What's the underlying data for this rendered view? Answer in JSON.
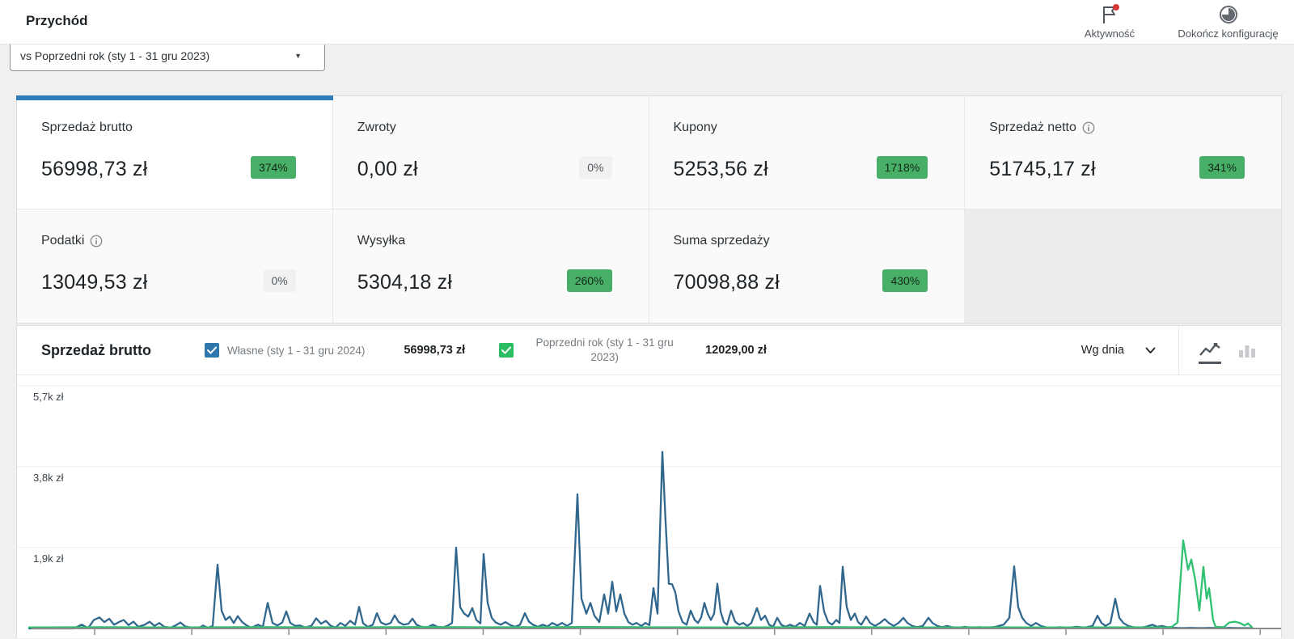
{
  "topbar": {
    "title": "Przychód",
    "items": [
      {
        "label": "Aktywność",
        "icon": "flag-icon",
        "has_notification_dot": true
      },
      {
        "label": "Dokończ konfigurację",
        "icon": "progress-pie-icon"
      }
    ]
  },
  "period_selector": {
    "value": "vs Poprzedni rok (sty 1 - 31 gru 2023)",
    "caret": "▼"
  },
  "stats": {
    "cards": [
      {
        "label": "Sprzedaż brutto",
        "value": "56998,73 zł",
        "badge": "374%",
        "badge_type": "positive",
        "selected": true,
        "has_info_icon": false
      },
      {
        "label": "Zwroty",
        "value": "0,00 zł",
        "badge": "0%",
        "badge_type": "neutral",
        "selected": false,
        "has_info_icon": false
      },
      {
        "label": "Kupony",
        "value": "5253,56 zł",
        "badge": "1718%",
        "badge_type": "positive",
        "selected": false,
        "has_info_icon": false
      },
      {
        "label": "Sprzedaż netto",
        "value": "51745,17 zł",
        "badge": "341%",
        "badge_type": "positive",
        "selected": false,
        "has_info_icon": true
      },
      {
        "label": "Podatki",
        "value": "13049,53 zł",
        "badge": "0%",
        "badge_type": "neutral",
        "selected": false,
        "has_info_icon": true
      },
      {
        "label": "Wysyłka",
        "value": "5304,18 zł",
        "badge": "260%",
        "badge_type": "positive",
        "selected": false,
        "has_info_icon": false
      },
      {
        "label": "Suma sprzedaży",
        "value": "70098,88 zł",
        "badge": "430%",
        "badge_type": "positive",
        "selected": false,
        "has_info_icon": false
      }
    ]
  },
  "chart": {
    "title": "Sprzedaż brutto",
    "legend": [
      {
        "label": "Własne (sty 1 - 31 gru 2024)",
        "value": "56998,73 zł",
        "checked": true,
        "color": "#2e77ad"
      },
      {
        "label": "Poprzedni rok (sty 1 - 31 gru 2023)",
        "value": "12029,00 zł",
        "checked": true,
        "color": "#2bbd62"
      }
    ],
    "interval_label": "Wg dnia",
    "chart_type_icons": [
      "line-chart-icon",
      "bar-chart-icon"
    ],
    "active_chart_type": "line"
  },
  "chart_data": {
    "type": "line",
    "title": "Sprzedaż brutto",
    "x_unit": "day",
    "xlabel": "",
    "ylabel": "zł",
    "ylim": [
      0,
      5970
    ],
    "grid": true,
    "legend_position": "top",
    "y_gridlines": [
      {
        "label": "5,7k zł",
        "value": 5700
      },
      {
        "label": "3,8k zł",
        "value": 3800
      },
      {
        "label": "1,9k zł",
        "value": 1900
      }
    ],
    "series": [
      {
        "name": "Własne (sty 1 - 31 gru 2024)",
        "color": "#31678d",
        "total": "56998,73 zł",
        "points": [
          [
            15,
            0
          ],
          [
            70,
            0
          ],
          [
            80,
            90
          ],
          [
            88,
            10
          ],
          [
            95,
            200
          ],
          [
            102,
            260
          ],
          [
            108,
            150
          ],
          [
            114,
            230
          ],
          [
            120,
            90
          ],
          [
            126,
            150
          ],
          [
            132,
            200
          ],
          [
            138,
            80
          ],
          [
            144,
            160
          ],
          [
            150,
            40
          ],
          [
            158,
            90
          ],
          [
            164,
            160
          ],
          [
            170,
            60
          ],
          [
            176,
            130
          ],
          [
            182,
            40
          ],
          [
            190,
            20
          ],
          [
            196,
            70
          ],
          [
            202,
            140
          ],
          [
            208,
            50
          ],
          [
            216,
            15
          ],
          [
            224,
            0
          ],
          [
            230,
            70
          ],
          [
            236,
            15
          ],
          [
            242,
            60
          ],
          [
            248,
            1500
          ],
          [
            253,
            420
          ],
          [
            258,
            200
          ],
          [
            263,
            280
          ],
          [
            268,
            130
          ],
          [
            273,
            290
          ],
          [
            278,
            160
          ],
          [
            284,
            70
          ],
          [
            290,
            15
          ],
          [
            298,
            90
          ],
          [
            304,
            40
          ],
          [
            310,
            600
          ],
          [
            316,
            130
          ],
          [
            322,
            70
          ],
          [
            328,
            140
          ],
          [
            333,
            400
          ],
          [
            338,
            130
          ],
          [
            344,
            60
          ],
          [
            350,
            70
          ],
          [
            356,
            25
          ],
          [
            364,
            60
          ],
          [
            370,
            240
          ],
          [
            376,
            110
          ],
          [
            382,
            180
          ],
          [
            388,
            60
          ],
          [
            394,
            25
          ],
          [
            400,
            130
          ],
          [
            406,
            60
          ],
          [
            412,
            180
          ],
          [
            418,
            90
          ],
          [
            423,
            510
          ],
          [
            428,
            120
          ],
          [
            434,
            40
          ],
          [
            440,
            90
          ],
          [
            445,
            360
          ],
          [
            450,
            140
          ],
          [
            456,
            90
          ],
          [
            462,
            130
          ],
          [
            467,
            310
          ],
          [
            472,
            150
          ],
          [
            478,
            90
          ],
          [
            484,
            110
          ],
          [
            489,
            230
          ],
          [
            494,
            90
          ],
          [
            500,
            40
          ],
          [
            508,
            30
          ],
          [
            514,
            90
          ],
          [
            520,
            40
          ],
          [
            526,
            25
          ],
          [
            532,
            60
          ],
          [
            538,
            130
          ],
          [
            543,
            1900
          ],
          [
            548,
            500
          ],
          [
            553,
            350
          ],
          [
            558,
            280
          ],
          [
            563,
            480
          ],
          [
            568,
            200
          ],
          [
            573,
            120
          ],
          [
            577,
            1750
          ],
          [
            582,
            600
          ],
          [
            587,
            250
          ],
          [
            592,
            140
          ],
          [
            598,
            90
          ],
          [
            604,
            150
          ],
          [
            610,
            80
          ],
          [
            616,
            40
          ],
          [
            622,
            90
          ],
          [
            628,
            360
          ],
          [
            633,
            160
          ],
          [
            638,
            90
          ],
          [
            644,
            40
          ],
          [
            650,
            90
          ],
          [
            656,
            50
          ],
          [
            662,
            130
          ],
          [
            668,
            70
          ],
          [
            674,
            130
          ],
          [
            680,
            60
          ],
          [
            686,
            130
          ],
          [
            693,
            3150
          ],
          [
            698,
            700
          ],
          [
            704,
            350
          ],
          [
            709,
            600
          ],
          [
            714,
            300
          ],
          [
            720,
            150
          ],
          [
            726,
            800
          ],
          [
            731,
            350
          ],
          [
            736,
            1100
          ],
          [
            741,
            400
          ],
          [
            746,
            800
          ],
          [
            751,
            350
          ],
          [
            756,
            150
          ],
          [
            761,
            90
          ],
          [
            766,
            130
          ],
          [
            772,
            60
          ],
          [
            777,
            130
          ],
          [
            782,
            80
          ],
          [
            787,
            950
          ],
          [
            792,
            350
          ],
          [
            798,
            4150
          ],
          [
            802,
            2500
          ],
          [
            806,
            1050
          ],
          [
            810,
            1040
          ],
          [
            814,
            850
          ],
          [
            818,
            400
          ],
          [
            823,
            150
          ],
          [
            828,
            90
          ],
          [
            833,
            420
          ],
          [
            838,
            200
          ],
          [
            842,
            130
          ],
          [
            846,
            260
          ],
          [
            850,
            600
          ],
          [
            854,
            350
          ],
          [
            858,
            200
          ],
          [
            862,
            350
          ],
          [
            866,
            1050
          ],
          [
            870,
            400
          ],
          [
            874,
            150
          ],
          [
            878,
            90
          ],
          [
            883,
            420
          ],
          [
            888,
            160
          ],
          [
            893,
            90
          ],
          [
            898,
            130
          ],
          [
            903,
            60
          ],
          [
            908,
            130
          ],
          [
            915,
            480
          ],
          [
            920,
            200
          ],
          [
            925,
            300
          ],
          [
            930,
            90
          ],
          [
            935,
            40
          ],
          [
            940,
            250
          ],
          [
            945,
            90
          ],
          [
            950,
            40
          ],
          [
            956,
            90
          ],
          [
            962,
            40
          ],
          [
            968,
            130
          ],
          [
            974,
            60
          ],
          [
            980,
            350
          ],
          [
            985,
            150
          ],
          [
            989,
            90
          ],
          [
            993,
            1000
          ],
          [
            998,
            400
          ],
          [
            1003,
            150
          ],
          [
            1008,
            90
          ],
          [
            1013,
            200
          ],
          [
            1017,
            130
          ],
          [
            1021,
            1450
          ],
          [
            1026,
            500
          ],
          [
            1031,
            200
          ],
          [
            1036,
            350
          ],
          [
            1040,
            150
          ],
          [
            1044,
            90
          ],
          [
            1050,
            280
          ],
          [
            1055,
            130
          ],
          [
            1061,
            60
          ],
          [
            1067,
            130
          ],
          [
            1073,
            220
          ],
          [
            1078,
            130
          ],
          [
            1084,
            60
          ],
          [
            1090,
            130
          ],
          [
            1096,
            250
          ],
          [
            1101,
            130
          ],
          [
            1107,
            60
          ],
          [
            1113,
            30
          ],
          [
            1120,
            60
          ],
          [
            1127,
            250
          ],
          [
            1132,
            130
          ],
          [
            1138,
            60
          ],
          [
            1144,
            30
          ],
          [
            1150,
            60
          ],
          [
            1156,
            30
          ],
          [
            1164,
            15
          ],
          [
            1172,
            40
          ],
          [
            1180,
            15
          ],
          [
            1190,
            30
          ],
          [
            1200,
            15
          ],
          [
            1210,
            40
          ],
          [
            1220,
            90
          ],
          [
            1227,
            250
          ],
          [
            1233,
            1460
          ],
          [
            1238,
            500
          ],
          [
            1243,
            250
          ],
          [
            1248,
            130
          ],
          [
            1254,
            60
          ],
          [
            1260,
            130
          ],
          [
            1266,
            60
          ],
          [
            1272,
            30
          ],
          [
            1280,
            15
          ],
          [
            1290,
            30
          ],
          [
            1300,
            15
          ],
          [
            1310,
            40
          ],
          [
            1320,
            20
          ],
          [
            1330,
            60
          ],
          [
            1336,
            300
          ],
          [
            1341,
            130
          ],
          [
            1346,
            60
          ],
          [
            1352,
            130
          ],
          [
            1358,
            700
          ],
          [
            1363,
            250
          ],
          [
            1368,
            130
          ],
          [
            1374,
            60
          ],
          [
            1380,
            30
          ],
          [
            1388,
            15
          ],
          [
            1396,
            40
          ],
          [
            1404,
            90
          ],
          [
            1410,
            40
          ],
          [
            1416,
            60
          ],
          [
            1422,
            30
          ],
          [
            1430,
            15
          ],
          [
            1440,
            10
          ],
          [
            1452,
            14
          ],
          [
            1464,
            10
          ],
          [
            1476,
            14
          ],
          [
            1488,
            10
          ],
          [
            1500,
            14
          ],
          [
            1512,
            10
          ],
          [
            1527,
            10
          ]
        ]
      },
      {
        "name": "Poprzedni rok (sty 1 - 31 gru 2023)",
        "color": "#2fc071",
        "total": "12029,00 zł",
        "points": [
          [
            15,
            25
          ],
          [
            100,
            30
          ],
          [
            200,
            25
          ],
          [
            300,
            32
          ],
          [
            400,
            25
          ],
          [
            500,
            34
          ],
          [
            600,
            28
          ],
          [
            700,
            34
          ],
          [
            800,
            28
          ],
          [
            900,
            25
          ],
          [
            1000,
            32
          ],
          [
            1100,
            25
          ],
          [
            1200,
            28
          ],
          [
            1300,
            25
          ],
          [
            1380,
            28
          ],
          [
            1420,
            25
          ],
          [
            1428,
            40
          ],
          [
            1435,
            140
          ],
          [
            1442,
            2070
          ],
          [
            1448,
            1380
          ],
          [
            1452,
            1620
          ],
          [
            1457,
            1130
          ],
          [
            1462,
            420
          ],
          [
            1467,
            1450
          ],
          [
            1471,
            700
          ],
          [
            1474,
            950
          ],
          [
            1479,
            200
          ],
          [
            1482,
            40
          ],
          [
            1492,
            30
          ],
          [
            1499,
            140
          ],
          [
            1506,
            160
          ],
          [
            1512,
            130
          ],
          [
            1518,
            70
          ],
          [
            1522,
            120
          ],
          [
            1527,
            30
          ]
        ]
      }
    ]
  }
}
